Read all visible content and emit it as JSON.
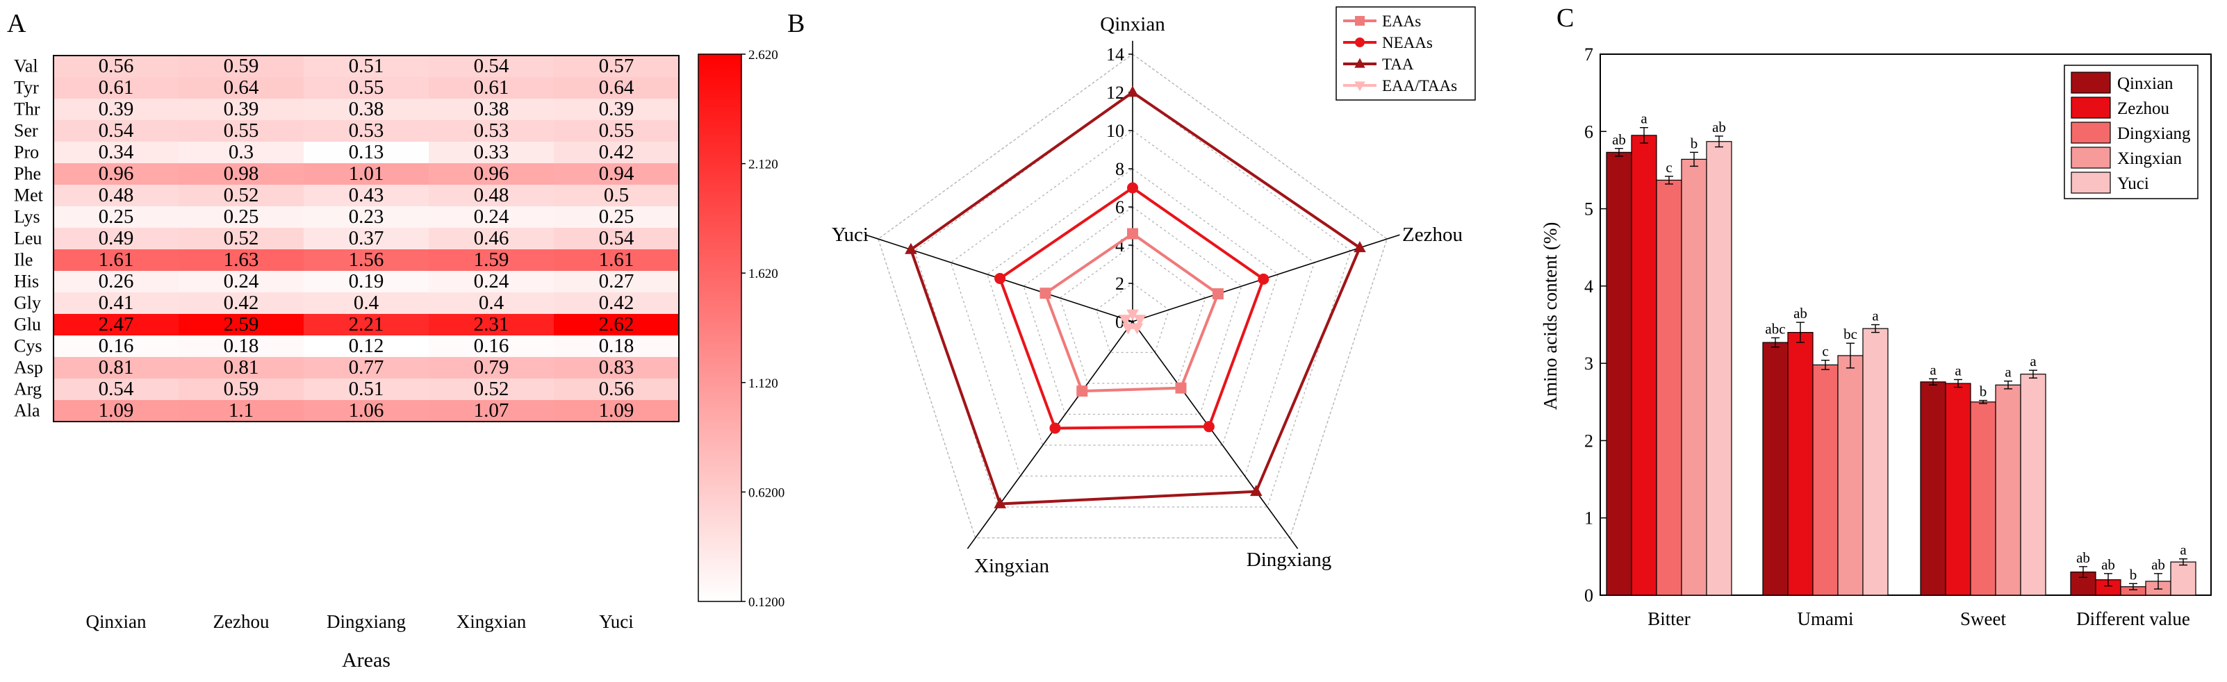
{
  "panels": {
    "a_label": "A",
    "b_label": "B",
    "c_label": "C"
  },
  "chart_data": [
    {
      "type": "heatmap",
      "panel": "A",
      "xlabel": "Areas",
      "x": [
        "Qinxian",
        "Zezhou",
        "Dingxiang",
        "Xingxian",
        "Yuci"
      ],
      "y": [
        "Val",
        "Tyr",
        "Thr",
        "Ser",
        "Pro",
        "Phe",
        "Met",
        "Lys",
        "Leu",
        "Ile",
        "His",
        "Gly",
        "Glu",
        "Cys",
        "Asp",
        "Arg",
        "Ala"
      ],
      "values": [
        [
          "0.56",
          "0.59",
          "0.51",
          "0.54",
          "0.57"
        ],
        [
          "0.61",
          "0.64",
          "0.55",
          "0.61",
          "0.64"
        ],
        [
          "0.39",
          "0.39",
          "0.38",
          "0.38",
          "0.39"
        ],
        [
          "0.54",
          "0.55",
          "0.53",
          "0.53",
          "0.55"
        ],
        [
          "0.34",
          "0.3",
          "0.13",
          "0.33",
          "0.42"
        ],
        [
          "0.96",
          "0.98",
          "1.01",
          "0.96",
          "0.94"
        ],
        [
          "0.48",
          "0.52",
          "0.43",
          "0.48",
          "0.5"
        ],
        [
          "0.25",
          "0.25",
          "0.23",
          "0.24",
          "0.25"
        ],
        [
          "0.49",
          "0.52",
          "0.37",
          "0.46",
          "0.54"
        ],
        [
          "1.61",
          "1.63",
          "1.56",
          "1.59",
          "1.61"
        ],
        [
          "0.26",
          "0.24",
          "0.19",
          "0.24",
          "0.27"
        ],
        [
          "0.41",
          "0.42",
          "0.4",
          "0.4",
          "0.42"
        ],
        [
          "2.47",
          "2.59",
          "2.21",
          "2.31",
          "2.62"
        ],
        [
          "0.16",
          "0.18",
          "0.12",
          "0.16",
          "0.18"
        ],
        [
          "0.81",
          "0.81",
          "0.77",
          "0.79",
          "0.83"
        ],
        [
          "0.54",
          "0.59",
          "0.51",
          "0.52",
          "0.56"
        ],
        [
          "1.09",
          "1.1",
          "1.06",
          "1.07",
          "1.09"
        ]
      ],
      "colorbar": {
        "min": 0.12,
        "max": 2.62,
        "ticks": [
          "2.620",
          "2.120",
          "1.620",
          "1.120",
          "0.6200",
          "0.1200"
        ],
        "low_color": "#ffffff",
        "high_color": "#ff0000"
      }
    },
    {
      "type": "radar",
      "panel": "B",
      "axes": [
        "Qinxian",
        "Zezhou",
        "Dingxiang",
        "Xingxian",
        "Yuci"
      ],
      "radial_ticks": [
        "0",
        "2",
        "4",
        "6",
        "8",
        "10",
        "12",
        "14"
      ],
      "rmax": 14,
      "series": [
        {
          "name": "EAAs",
          "values": [
            4.6,
            4.7,
            4.3,
            4.5,
            4.8
          ],
          "color": "#f07a7a",
          "marker": "square"
        },
        {
          "name": "NEAAs",
          "values": [
            7.0,
            7.2,
            6.8,
            6.9,
            7.3
          ],
          "color": "#e8141a",
          "marker": "circle"
        },
        {
          "name": "TAA",
          "values": [
            12.0,
            12.5,
            11.0,
            11.8,
            12.2
          ],
          "color": "#a01418",
          "marker": "triangle"
        },
        {
          "name": "EAA/TAAs",
          "values": [
            0.4,
            0.4,
            0.4,
            0.4,
            0.4
          ],
          "color": "#ffb6b6",
          "marker": "triangle-down"
        }
      ]
    },
    {
      "type": "bar",
      "panel": "C",
      "ylabel": "Amino acids content (%)",
      "categories": [
        "Bitter",
        "Umami",
        "Sweet",
        "Different value"
      ],
      "ylim": [
        0,
        7
      ],
      "y_ticks": [
        "0",
        "1",
        "2",
        "3",
        "4",
        "5",
        "6",
        "7"
      ],
      "series": [
        {
          "name": "Qinxian",
          "color": "#a30d12",
          "values": [
            5.73,
            3.27,
            2.76,
            0.3
          ],
          "errors": [
            0.05,
            0.06,
            0.04,
            0.07
          ],
          "letters": [
            "ab",
            "abc",
            "a",
            "ab"
          ]
        },
        {
          "name": "Zezhou",
          "color": "#e80d14",
          "values": [
            5.95,
            3.4,
            2.74,
            0.2
          ],
          "errors": [
            0.1,
            0.13,
            0.05,
            0.08
          ],
          "letters": [
            "a",
            "ab",
            "a",
            "ab"
          ]
        },
        {
          "name": "Dingxiang",
          "color": "#f46a6a",
          "values": [
            5.37,
            2.98,
            2.5,
            0.11
          ],
          "errors": [
            0.05,
            0.06,
            0.02,
            0.04
          ],
          "letters": [
            "c",
            "c",
            "b",
            "b"
          ]
        },
        {
          "name": "Xingxian",
          "color": "#f69a9a",
          "values": [
            5.64,
            3.1,
            2.72,
            0.18
          ],
          "errors": [
            0.09,
            0.16,
            0.05,
            0.1
          ],
          "letters": [
            "b",
            "bc",
            "a",
            "ab"
          ]
        },
        {
          "name": "Yuci",
          "color": "#fac2c2",
          "values": [
            5.87,
            3.45,
            2.86,
            0.43
          ],
          "errors": [
            0.07,
            0.05,
            0.05,
            0.04
          ],
          "letters": [
            "ab",
            "a",
            "a",
            "a"
          ]
        }
      ]
    }
  ]
}
